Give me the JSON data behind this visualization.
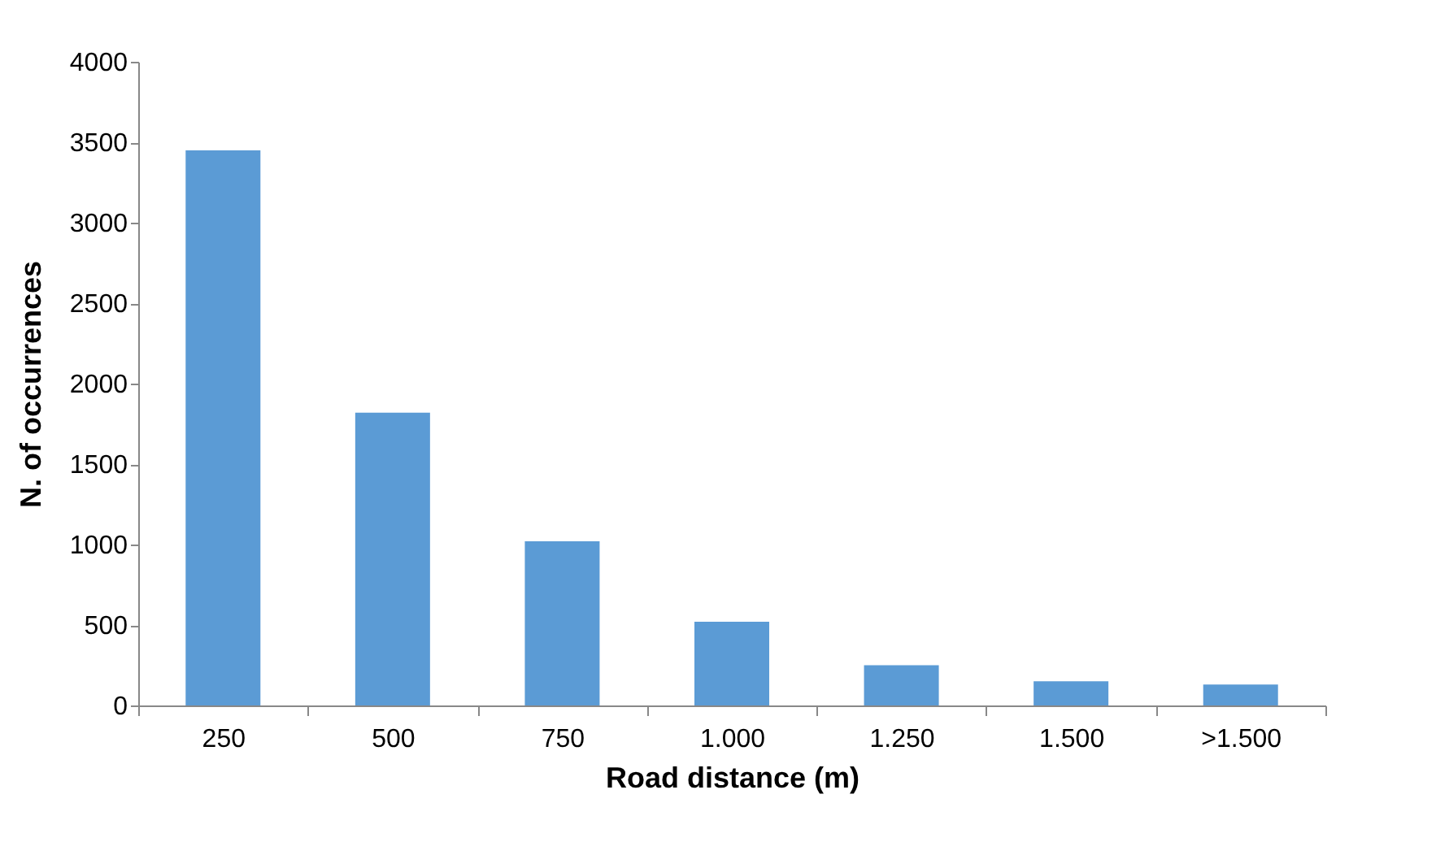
{
  "chart_data": {
    "type": "bar",
    "xlabel": "Road distance (m)",
    "ylabel": "N. of occurrences",
    "categories": [
      "250",
      "500",
      "750",
      "1.000",
      "1.250",
      "1.500",
      ">1.500"
    ],
    "values": [
      3450,
      1820,
      1020,
      520,
      250,
      150,
      130
    ],
    "color": "#5b9bd5",
    "ylim": [
      0,
      4000
    ],
    "yticks": [
      0,
      500,
      1000,
      1500,
      2000,
      2500,
      3000,
      3500,
      4000
    ],
    "grid": false
  }
}
